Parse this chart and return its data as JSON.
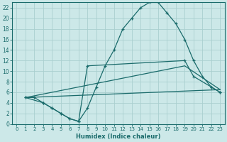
{
  "xlabel": "Humidex (Indice chaleur)",
  "bg_color": "#cce8e8",
  "line_color": "#1a6b6b",
  "grid_color": "#aacfcf",
  "xlim": [
    -0.5,
    23.5
  ],
  "ylim": [
    0,
    23
  ],
  "xticks": [
    0,
    1,
    2,
    3,
    4,
    5,
    6,
    7,
    8,
    9,
    10,
    11,
    12,
    13,
    14,
    15,
    16,
    17,
    18,
    19,
    20,
    21,
    22,
    23
  ],
  "yticks": [
    0,
    2,
    4,
    6,
    8,
    10,
    12,
    14,
    16,
    18,
    20,
    22
  ],
  "line1_x": [
    1,
    2,
    3,
    4,
    5,
    6,
    7,
    8,
    9,
    10,
    11,
    12,
    13,
    14,
    15,
    16,
    17,
    18,
    19,
    20,
    21,
    22,
    23
  ],
  "line1_y": [
    5,
    5,
    4,
    3,
    2,
    1,
    0.5,
    3,
    7,
    11,
    14,
    18,
    20,
    22,
    23,
    23,
    21,
    19,
    16,
    12,
    9,
    7,
    6
  ],
  "line2_x": [
    1,
    3,
    4,
    5,
    6,
    7,
    8,
    19,
    20,
    22,
    23
  ],
  "line2_y": [
    5,
    4,
    3,
    2,
    1,
    0.5,
    11,
    12,
    9,
    7,
    6
  ],
  "line3_x": [
    1,
    23
  ],
  "line3_y": [
    5,
    6.5
  ],
  "line4_x": [
    1,
    19,
    23
  ],
  "line4_y": [
    5,
    11,
    6.5
  ]
}
